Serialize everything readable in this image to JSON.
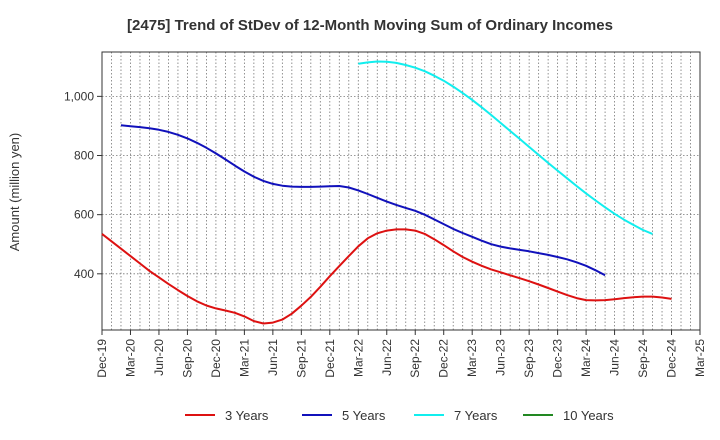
{
  "chart_data": {
    "type": "line",
    "title": "[2475]  Trend of StDev of 12-Month Moving Sum of Ordinary Incomes",
    "xlabel": "",
    "ylabel": "Amount (million yen)",
    "ylim": [
      210,
      1150
    ],
    "yticks": [
      400,
      600,
      800,
      1000
    ],
    "ytick_labels": [
      "400",
      "600",
      "800",
      "1,000"
    ],
    "xlim": [
      0,
      63
    ],
    "x_ticks": [
      {
        "label": "Dec-19",
        "pos": 0
      },
      {
        "label": "Mar-20",
        "pos": 3
      },
      {
        "label": "Jun-20",
        "pos": 6
      },
      {
        "label": "Sep-20",
        "pos": 9
      },
      {
        "label": "Dec-20",
        "pos": 12
      },
      {
        "label": "Mar-21",
        "pos": 15
      },
      {
        "label": "Jun-21",
        "pos": 18
      },
      {
        "label": "Sep-21",
        "pos": 21
      },
      {
        "label": "Dec-21",
        "pos": 24
      },
      {
        "label": "Mar-22",
        "pos": 27
      },
      {
        "label": "Jun-22",
        "pos": 30
      },
      {
        "label": "Sep-22",
        "pos": 33
      },
      {
        "label": "Dec-22",
        "pos": 36
      },
      {
        "label": "Mar-23",
        "pos": 39
      },
      {
        "label": "Jun-23",
        "pos": 42
      },
      {
        "label": "Sep-23",
        "pos": 45
      },
      {
        "label": "Dec-23",
        "pos": 48
      },
      {
        "label": "Mar-24",
        "pos": 51
      },
      {
        "label": "Jun-24",
        "pos": 54
      },
      {
        "label": "Sep-24",
        "pos": 57
      },
      {
        "label": "Dec-24",
        "pos": 60
      },
      {
        "label": "Mar-25",
        "pos": 63
      }
    ],
    "series": [
      {
        "name": "3 Years",
        "color": "#dd1111",
        "points": [
          [
            0,
            535
          ],
          [
            1,
            510
          ],
          [
            2,
            485
          ],
          [
            3,
            460
          ],
          [
            4,
            435
          ],
          [
            5,
            410
          ],
          [
            6,
            388
          ],
          [
            7,
            366
          ],
          [
            8,
            345
          ],
          [
            9,
            325
          ],
          [
            10,
            307
          ],
          [
            11,
            293
          ],
          [
            12,
            283
          ],
          [
            13,
            276
          ],
          [
            14,
            268
          ],
          [
            15,
            256
          ],
          [
            16,
            240
          ],
          [
            17,
            232
          ],
          [
            18,
            235
          ],
          [
            19,
            245
          ],
          [
            20,
            265
          ],
          [
            21,
            292
          ],
          [
            22,
            322
          ],
          [
            23,
            356
          ],
          [
            24,
            392
          ],
          [
            25,
            426
          ],
          [
            26,
            460
          ],
          [
            27,
            493
          ],
          [
            28,
            520
          ],
          [
            29,
            537
          ],
          [
            30,
            546
          ],
          [
            31,
            550
          ],
          [
            32,
            550
          ],
          [
            33,
            546
          ],
          [
            34,
            535
          ],
          [
            35,
            517
          ],
          [
            36,
            497
          ],
          [
            37,
            476
          ],
          [
            38,
            457
          ],
          [
            39,
            441
          ],
          [
            40,
            427
          ],
          [
            41,
            415
          ],
          [
            42,
            405
          ],
          [
            43,
            395
          ],
          [
            44,
            385
          ],
          [
            45,
            375
          ],
          [
            46,
            364
          ],
          [
            47,
            352
          ],
          [
            48,
            340
          ],
          [
            49,
            328
          ],
          [
            50,
            318
          ],
          [
            51,
            311
          ],
          [
            52,
            310
          ],
          [
            53,
            311
          ],
          [
            54,
            314
          ],
          [
            55,
            318
          ],
          [
            56,
            321
          ],
          [
            57,
            323
          ],
          [
            58,
            323
          ],
          [
            59,
            320
          ],
          [
            60,
            315
          ]
        ]
      },
      {
        "name": "5 Years",
        "color": "#1111bb",
        "points": [
          [
            2,
            902
          ],
          [
            3,
            899
          ],
          [
            4,
            896
          ],
          [
            5,
            892
          ],
          [
            6,
            887
          ],
          [
            7,
            880
          ],
          [
            8,
            870
          ],
          [
            9,
            858
          ],
          [
            10,
            843
          ],
          [
            11,
            826
          ],
          [
            12,
            807
          ],
          [
            13,
            787
          ],
          [
            14,
            766
          ],
          [
            15,
            746
          ],
          [
            16,
            728
          ],
          [
            17,
            714
          ],
          [
            18,
            704
          ],
          [
            19,
            698
          ],
          [
            20,
            695
          ],
          [
            21,
            694
          ],
          [
            22,
            694
          ],
          [
            23,
            695
          ],
          [
            24,
            696
          ],
          [
            25,
            697
          ],
          [
            26,
            692
          ],
          [
            27,
            682
          ],
          [
            28,
            670
          ],
          [
            29,
            657
          ],
          [
            30,
            644
          ],
          [
            31,
            633
          ],
          [
            32,
            623
          ],
          [
            33,
            613
          ],
          [
            34,
            600
          ],
          [
            35,
            584
          ],
          [
            36,
            568
          ],
          [
            37,
            552
          ],
          [
            38,
            538
          ],
          [
            39,
            525
          ],
          [
            40,
            512
          ],
          [
            41,
            500
          ],
          [
            42,
            492
          ],
          [
            43,
            486
          ],
          [
            44,
            481
          ],
          [
            45,
            476
          ],
          [
            46,
            470
          ],
          [
            47,
            464
          ],
          [
            48,
            457
          ],
          [
            49,
            449
          ],
          [
            50,
            439
          ],
          [
            51,
            427
          ],
          [
            52,
            412
          ],
          [
            53,
            395
          ]
        ]
      },
      {
        "name": "7 Years",
        "color": "#11eeee",
        "points": [
          [
            27,
            1110
          ],
          [
            28,
            1115
          ],
          [
            29,
            1118
          ],
          [
            30,
            1117
          ],
          [
            31,
            1113
          ],
          [
            32,
            1106
          ],
          [
            33,
            1097
          ],
          [
            34,
            1085
          ],
          [
            35,
            1070
          ],
          [
            36,
            1053
          ],
          [
            37,
            1033
          ],
          [
            38,
            1011
          ],
          [
            39,
            988
          ],
          [
            40,
            963
          ],
          [
            41,
            937
          ],
          [
            42,
            910
          ],
          [
            43,
            883
          ],
          [
            44,
            856
          ],
          [
            45,
            829
          ],
          [
            46,
            802
          ],
          [
            47,
            775
          ],
          [
            48,
            749
          ],
          [
            49,
            723
          ],
          [
            50,
            697
          ],
          [
            51,
            672
          ],
          [
            52,
            648
          ],
          [
            53,
            625
          ],
          [
            54,
            603
          ],
          [
            55,
            583
          ],
          [
            56,
            565
          ],
          [
            57,
            548
          ],
          [
            58,
            535
          ]
        ]
      },
      {
        "name": "10 Years",
        "color": "#228822",
        "points": []
      }
    ],
    "legend_position": "bottom-center"
  }
}
